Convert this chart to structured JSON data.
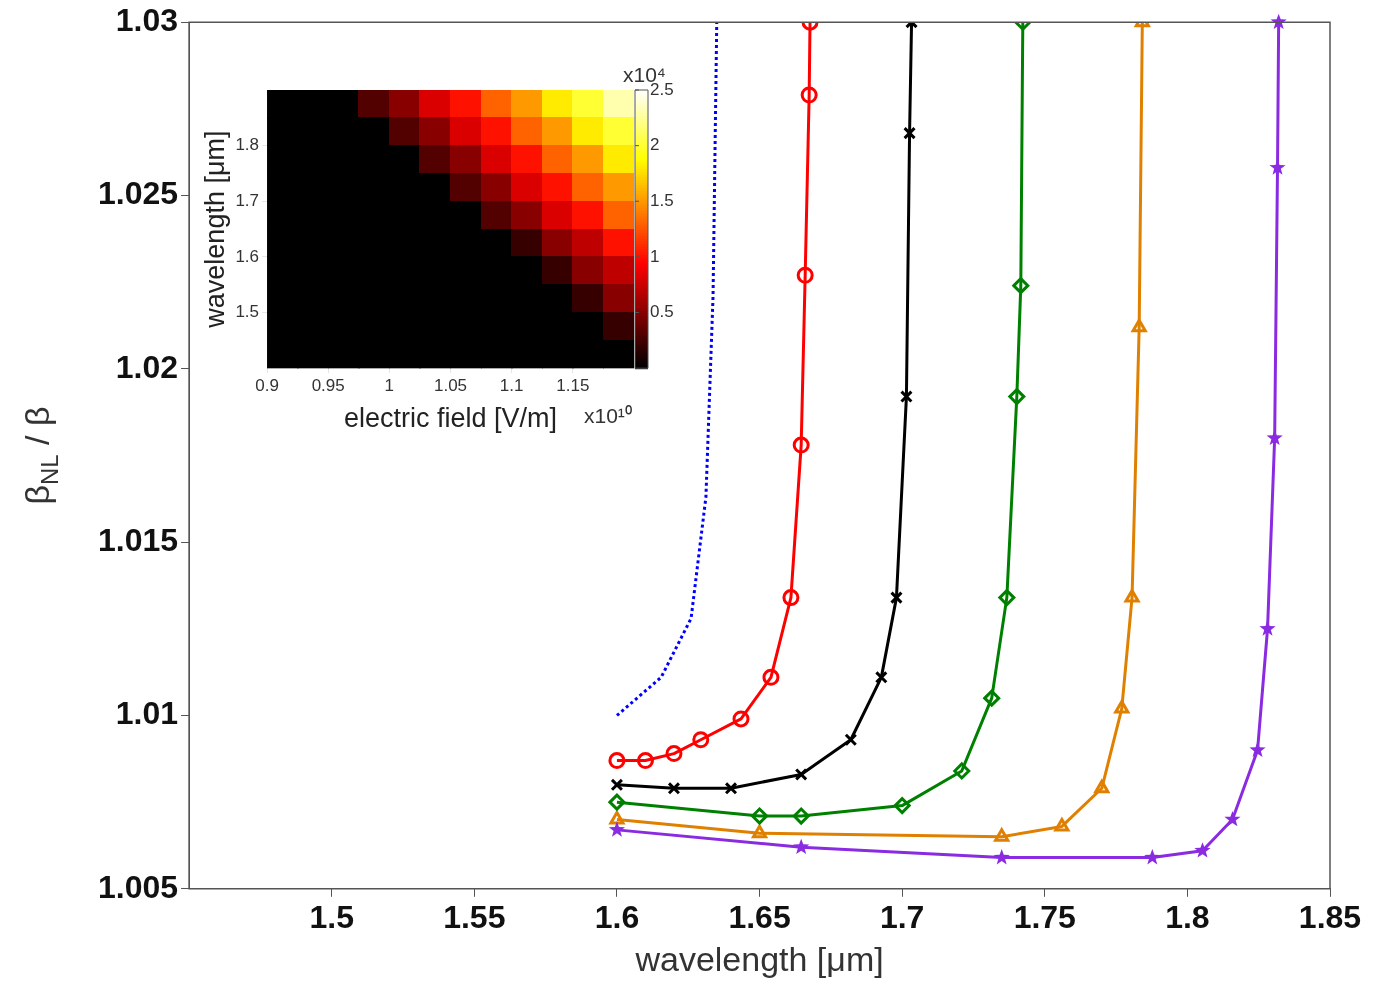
{
  "chart_data": [
    {
      "type": "line",
      "xlabel": "wavelength [μm]",
      "ylabel": "β$_{NL}$ / β",
      "xlim": [
        1.45,
        1.85
      ],
      "ylim": [
        1.005,
        1.03
      ],
      "xticks": [
        1.5,
        1.55,
        1.6,
        1.65,
        1.7,
        1.75,
        1.8,
        1.85
      ],
      "yticks": [
        1.005,
        1.01,
        1.015,
        1.02,
        1.025,
        1.03
      ],
      "grid": false,
      "legend": false,
      "series": [
        {
          "color": "#0000ff",
          "marker": "none",
          "line_style": "dotted",
          "x": [
            1.6,
            1.6155,
            1.626,
            1.6312,
            1.6337,
            1.635
          ],
          "values": [
            1.01,
            1.0111,
            1.0128,
            1.0163,
            1.0221,
            1.03
          ]
        },
        {
          "color": "#ff0000",
          "marker": "circle",
          "line_style": "solid",
          "x": [
            1.6,
            1.61,
            1.62,
            1.6294,
            1.6435,
            1.654,
            1.661,
            1.6646,
            1.666,
            1.6674,
            1.6677
          ],
          "values": [
            1.0087,
            1.0087,
            1.0089,
            1.0093,
            1.0099,
            1.0111,
            1.0134,
            1.0178,
            1.0227,
            1.0279,
            1.03
          ]
        },
        {
          "color": "#000000",
          "marker": "cross",
          "line_style": "solid",
          "x": [
            1.6,
            1.62,
            1.64,
            1.6646,
            1.682,
            1.6927,
            1.698,
            1.7015,
            1.7026,
            1.7033
          ],
          "values": [
            1.008,
            1.0079,
            1.0079,
            1.0083,
            1.0093,
            1.0111,
            1.0134,
            1.0192,
            1.0268,
            1.03
          ]
        },
        {
          "color": "#008000",
          "marker": "diamond",
          "line_style": "solid",
          "x": [
            1.6,
            1.65,
            1.6646,
            1.7,
            1.7209,
            1.7314,
            1.7367,
            1.7402,
            1.7416,
            1.7423
          ],
          "values": [
            1.0075,
            1.0071,
            1.0071,
            1.0074,
            1.0084,
            1.0105,
            1.0134,
            1.0192,
            1.0224,
            1.03
          ]
        },
        {
          "color": "#e08000",
          "marker": "triangle",
          "line_style": "solid",
          "x": [
            1.6,
            1.65,
            1.7349,
            1.756,
            1.77,
            1.777,
            1.7806,
            1.7831,
            1.7842
          ],
          "values": [
            1.007,
            1.0066,
            1.0065,
            1.0068,
            1.0079,
            1.0102,
            1.0134,
            1.0212,
            1.03
          ]
        },
        {
          "color": "#8a2be2",
          "marker": "star",
          "line_style": "solid",
          "x": [
            1.6,
            1.6646,
            1.7349,
            1.7877,
            1.8053,
            1.8158,
            1.8246,
            1.8281,
            1.8306,
            1.8316,
            1.832
          ],
          "values": [
            1.0067,
            1.0062,
            1.0059,
            1.0059,
            1.0061,
            1.007,
            1.009,
            1.0125,
            1.018,
            1.0258,
            1.03
          ]
        }
      ]
    },
    {
      "type": "heatmap",
      "xlabel": "electric field [V/m]",
      "ylabel": "wavelength [μm]",
      "xlim": [
        0.9,
        1.2
      ],
      "ylim": [
        1.4,
        1.9
      ],
      "xticks": [
        0.9,
        0.95,
        1,
        1.05,
        1.1,
        1.15
      ],
      "yticks": [
        1.5,
        1.6,
        1.7,
        1.8
      ],
      "clim": [
        0,
        2.5
      ],
      "cticks": [
        0.5,
        1,
        1.5,
        2,
        2.5
      ],
      "annotations": [
        "x10⁴",
        "x10¹⁰"
      ],
      "x": [
        0.9125,
        0.9375,
        0.9625,
        0.9875,
        1.0125,
        1.0375,
        1.0625,
        1.0875,
        1.1125,
        1.1375,
        1.1625,
        1.1875
      ],
      "y": [
        1.875,
        1.825,
        1.775,
        1.725,
        1.675,
        1.625,
        1.575,
        1.525,
        1.475,
        1.425
      ],
      "cells": [
        [
          0,
          0,
          0,
          0.3,
          0.5,
          0.8,
          1.0,
          1.3,
          1.5,
          1.8,
          2.0,
          2.3
        ],
        [
          0,
          0,
          0,
          0,
          0.3,
          0.5,
          0.8,
          1.0,
          1.3,
          1.5,
          1.8,
          2.0
        ],
        [
          0,
          0,
          0,
          0,
          0,
          0.3,
          0.5,
          0.8,
          1.0,
          1.3,
          1.5,
          1.8
        ],
        [
          0,
          0,
          0,
          0,
          0,
          0,
          0.3,
          0.5,
          0.8,
          1.0,
          1.3,
          1.5
        ],
        [
          0,
          0,
          0,
          0,
          0,
          0,
          0,
          0.3,
          0.5,
          0.8,
          1.0,
          1.3
        ],
        [
          0,
          0,
          0,
          0,
          0,
          0,
          0,
          0,
          0.2,
          0.5,
          0.7,
          1.0
        ],
        [
          0,
          0,
          0,
          0,
          0,
          0,
          0,
          0,
          0,
          0.2,
          0.5,
          0.7
        ],
        [
          0,
          0,
          0,
          0,
          0,
          0,
          0,
          0,
          0,
          0,
          0.2,
          0.5
        ],
        [
          0,
          0,
          0,
          0,
          0,
          0,
          0,
          0,
          0,
          0,
          0,
          0.2
        ],
        [
          0,
          0,
          0,
          0,
          0,
          0,
          0,
          0,
          0,
          0,
          0,
          0
        ]
      ]
    }
  ]
}
